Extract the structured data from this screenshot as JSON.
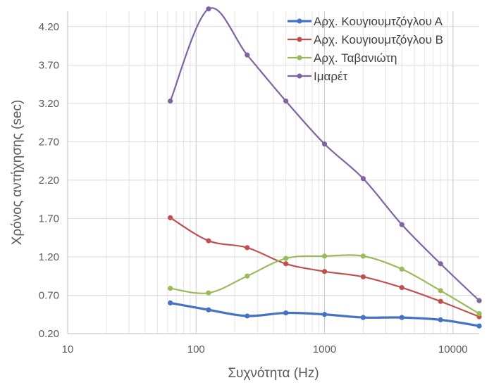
{
  "chart_data": {
    "type": "line",
    "title": "",
    "xlabel": "Συχνότητα (Hz)",
    "ylabel": "Χρόνος αντήχησης (sec)",
    "x_scale": "log",
    "xlim": [
      10,
      16000
    ],
    "ylim": [
      0.2,
      4.4
    ],
    "x_ticks": [
      10,
      100,
      1000,
      10000
    ],
    "x_tick_labels": [
      "10",
      "100",
      "1000",
      "10000"
    ],
    "y_ticks": [
      0.2,
      0.7,
      1.2,
      1.7,
      2.2,
      2.7,
      3.2,
      3.7,
      4.2
    ],
    "y_tick_labels": [
      "0.20",
      "0.70",
      "1.20",
      "1.70",
      "2.20",
      "2.70",
      "3.20",
      "3.70",
      "4.20"
    ],
    "grid": "both",
    "legend_position": "top-right",
    "x": [
      63,
      125,
      250,
      500,
      1000,
      2000,
      4000,
      8000,
      16000
    ],
    "series": [
      {
        "name": "Αρχ. Κουγιουμτζόγλου Α",
        "color": "#4472c4",
        "width": 3.2,
        "values": [
          0.6,
          0.51,
          0.43,
          0.47,
          0.45,
          0.41,
          0.41,
          0.38,
          0.3
        ]
      },
      {
        "name": "Αρχ. Κουγιουμτζόγλου Β",
        "color": "#c0504d",
        "width": 2.2,
        "values": [
          1.71,
          1.41,
          1.32,
          1.11,
          1.01,
          0.94,
          0.8,
          0.62,
          0.42
        ]
      },
      {
        "name": "Αρχ. Ταβανιώτη",
        "color": "#9bbb59",
        "width": 2.2,
        "values": [
          0.79,
          0.73,
          0.95,
          1.18,
          1.21,
          1.21,
          1.04,
          0.76,
          0.46
        ]
      },
      {
        "name": "Ιμαρέτ",
        "color": "#8064a2",
        "width": 2.2,
        "values": [
          3.23,
          4.43,
          3.83,
          3.23,
          2.67,
          2.22,
          1.62,
          1.11,
          0.63
        ]
      }
    ]
  }
}
